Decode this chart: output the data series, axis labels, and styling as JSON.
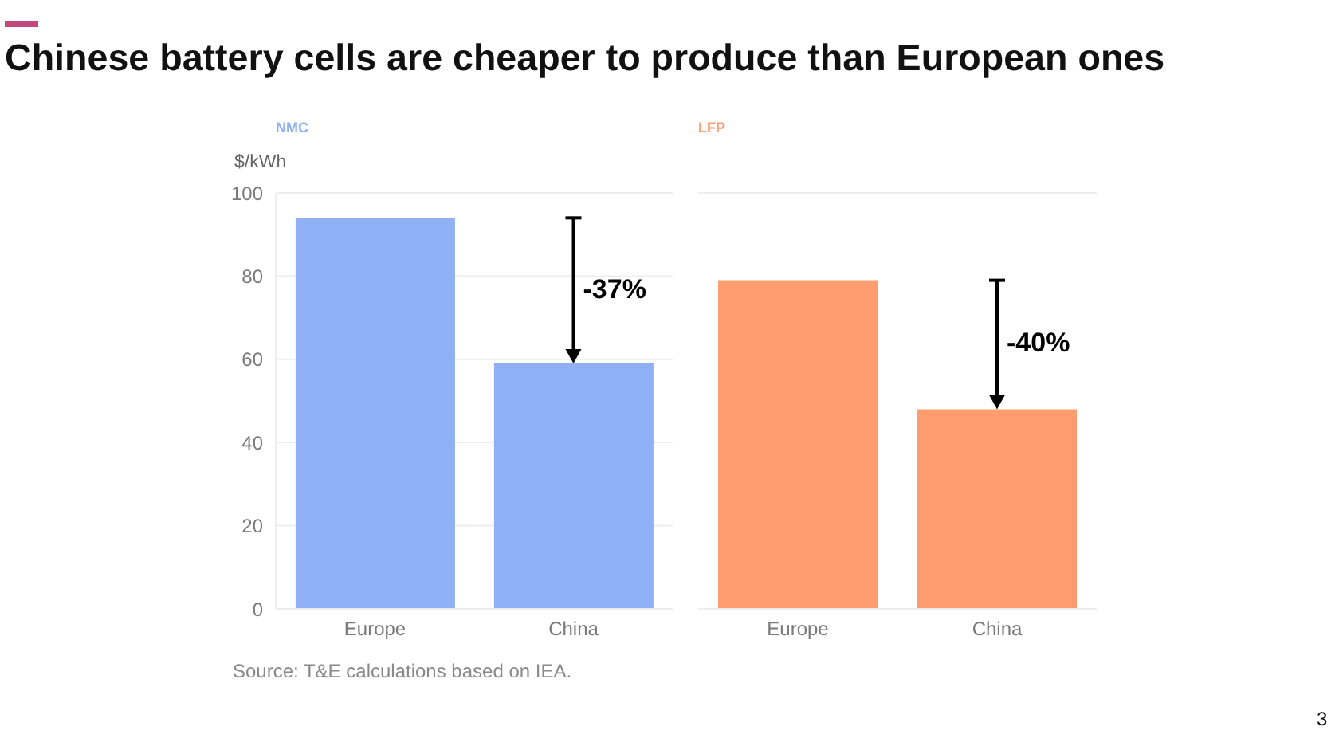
{
  "chart_data": [
    {
      "type": "bar",
      "title": "Chinese battery cells are cheaper to produce than European ones",
      "subtitle": "NMC",
      "ylabel": "$/kWh",
      "categories": [
        "Europe",
        "China"
      ],
      "values": [
        94,
        59
      ],
      "color": "#8fb0f4",
      "ylim": [
        0,
        100
      ],
      "yticks": [
        0,
        20,
        40,
        60,
        80,
        100
      ],
      "grid": "y",
      "annotations": [
        "-37%",
        "Source: T&E calculations based on IEA.",
        "3"
      ]
    },
    {
      "type": "bar",
      "subtitle": "LFP",
      "categories": [
        "Europe",
        "China"
      ],
      "values": [
        79,
        48
      ],
      "color": "#ff9d70",
      "ylim": [
        0,
        100
      ],
      "yticks": [
        0,
        20,
        40,
        60,
        80,
        100
      ],
      "grid": "y",
      "tick_labels": "x",
      "annotations": [
        "-40%"
      ]
    }
  ]
}
